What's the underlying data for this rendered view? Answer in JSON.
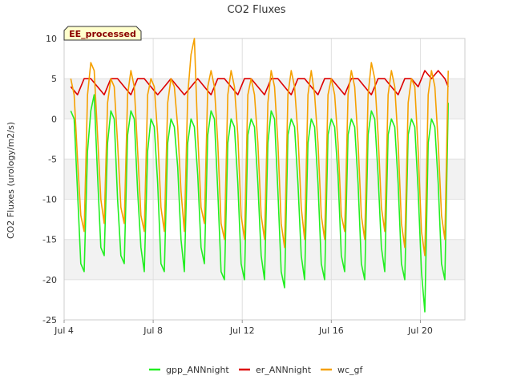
{
  "chart_data": {
    "type": "line",
    "title": "CO2 Fluxes",
    "ylabel": "CO2 Fluxes (urology/m2/s)",
    "xlabel": "",
    "badge": "EE_processed",
    "xlim": [
      4.0,
      22.0
    ],
    "ylim": [
      -25,
      10
    ],
    "yticks": [
      10,
      5,
      0,
      -5,
      -10,
      -15,
      -20,
      -25
    ],
    "xticks": [
      {
        "value": 4,
        "label": "Jul 4"
      },
      {
        "value": 8,
        "label": "Jul 8"
      },
      {
        "value": 12,
        "label": "Jul 12"
      },
      {
        "value": 16,
        "label": "Jul 16"
      },
      {
        "value": 20,
        "label": "Jul 20"
      }
    ],
    "grid": true,
    "legend_position": "bottom-center",
    "colors": {
      "gpp_ANNnight": "#22ee22",
      "er_ANNnight": "#dd0000",
      "wc_gf": "#f5a000",
      "band": "#f2f2f2",
      "badge_bg": "#ffffcc",
      "badge_text": "#8b0000"
    },
    "series": [
      {
        "name": "gpp_ANNnight",
        "x": [
          4.3,
          4.45,
          4.6,
          4.75,
          4.9,
          5.05,
          5.2,
          5.35,
          5.5,
          5.65,
          5.8,
          5.95,
          6.1,
          6.25,
          6.4,
          6.55,
          6.7,
          6.85,
          7.0,
          7.15,
          7.3,
          7.45,
          7.6,
          7.75,
          7.9,
          8.05,
          8.2,
          8.35,
          8.5,
          8.65,
          8.8,
          8.95,
          9.1,
          9.25,
          9.4,
          9.55,
          9.7,
          9.85,
          10.0,
          10.15,
          10.3,
          10.45,
          10.6,
          10.75,
          10.9,
          11.05,
          11.2,
          11.35,
          11.5,
          11.65,
          11.8,
          11.95,
          12.1,
          12.25,
          12.4,
          12.55,
          12.7,
          12.85,
          13.0,
          13.15,
          13.3,
          13.45,
          13.6,
          13.75,
          13.9,
          14.05,
          14.2,
          14.35,
          14.5,
          14.65,
          14.8,
          14.95,
          15.1,
          15.25,
          15.4,
          15.55,
          15.7,
          15.85,
          16.0,
          16.15,
          16.3,
          16.45,
          16.6,
          16.75,
          16.9,
          17.05,
          17.2,
          17.35,
          17.5,
          17.65,
          17.8,
          17.95,
          18.1,
          18.25,
          18.4,
          18.55,
          18.7,
          18.85,
          19.0,
          19.15,
          19.3,
          19.45,
          19.6,
          19.75,
          19.9,
          20.05,
          20.2,
          20.35,
          20.5,
          20.65,
          20.8,
          20.95,
          21.1,
          21.25
        ],
        "values": [
          1,
          0,
          -9,
          -18,
          -19,
          -4,
          1,
          3,
          -7,
          -16,
          -17,
          -3,
          1,
          0,
          -10,
          -17,
          -18,
          -2,
          1,
          0,
          -9,
          -16,
          -19,
          -4,
          0,
          -1,
          -8,
          -18,
          -19,
          -3,
          0,
          -1,
          -6,
          -15,
          -19,
          -3,
          0,
          -1,
          -7,
          -16,
          -18,
          -2,
          1,
          0,
          -9,
          -19,
          -20,
          -3,
          0,
          -1,
          -8,
          -18,
          -20,
          -2,
          0,
          -1,
          -8,
          -17,
          -20,
          -3,
          1,
          0,
          -9,
          -19,
          -21,
          -2,
          0,
          -1,
          -8,
          -17,
          -20,
          -3,
          0,
          -1,
          -8,
          -18,
          -20,
          -2,
          0,
          -1,
          -7,
          -17,
          -19,
          -2,
          0,
          -1,
          -8,
          -18,
          -20,
          -2,
          1,
          0,
          -7,
          -16,
          -19,
          -2,
          0,
          -1,
          -8,
          -18,
          -20,
          -2,
          0,
          -1,
          -9,
          -19,
          -24,
          -3,
          0,
          -1,
          -8,
          -18,
          -20,
          2
        ]
      },
      {
        "name": "er_ANNnight",
        "x": [
          4.3,
          4.6,
          4.9,
          5.2,
          5.5,
          5.8,
          6.1,
          6.4,
          6.7,
          7.0,
          7.3,
          7.6,
          7.9,
          8.2,
          8.5,
          8.8,
          9.1,
          9.4,
          9.7,
          10.0,
          10.3,
          10.6,
          10.9,
          11.2,
          11.5,
          11.8,
          12.1,
          12.4,
          12.7,
          13.0,
          13.3,
          13.6,
          13.9,
          14.2,
          14.5,
          14.8,
          15.1,
          15.4,
          15.7,
          16.0,
          16.3,
          16.6,
          16.9,
          17.2,
          17.5,
          17.8,
          18.1,
          18.4,
          18.7,
          19.0,
          19.3,
          19.6,
          19.9,
          20.2,
          20.5,
          20.8,
          21.1,
          21.25
        ],
        "values": [
          4,
          3,
          5,
          5,
          4,
          3,
          5,
          5,
          4,
          3,
          5,
          5,
          4,
          3,
          4,
          5,
          4,
          3,
          4,
          5,
          4,
          3,
          5,
          5,
          4,
          3,
          5,
          5,
          4,
          3,
          5,
          5,
          4,
          3,
          5,
          5,
          4,
          3,
          5,
          5,
          4,
          3,
          5,
          5,
          4,
          3,
          5,
          5,
          4,
          3,
          5,
          5,
          4,
          6,
          5,
          6,
          5,
          4
        ]
      },
      {
        "name": "wc_gf",
        "x": [
          4.3,
          4.45,
          4.6,
          4.75,
          4.9,
          5.05,
          5.2,
          5.35,
          5.5,
          5.65,
          5.8,
          5.95,
          6.1,
          6.25,
          6.4,
          6.55,
          6.7,
          6.85,
          7.0,
          7.15,
          7.3,
          7.45,
          7.6,
          7.75,
          7.9,
          8.05,
          8.2,
          8.35,
          8.5,
          8.65,
          8.8,
          8.95,
          9.1,
          9.25,
          9.4,
          9.55,
          9.7,
          9.85,
          10.0,
          10.15,
          10.3,
          10.45,
          10.6,
          10.75,
          10.9,
          11.05,
          11.2,
          11.35,
          11.5,
          11.65,
          11.8,
          11.95,
          12.1,
          12.25,
          12.4,
          12.55,
          12.7,
          12.85,
          13.0,
          13.15,
          13.3,
          13.45,
          13.6,
          13.75,
          13.9,
          14.05,
          14.2,
          14.35,
          14.5,
          14.65,
          14.8,
          14.95,
          15.1,
          15.25,
          15.4,
          15.55,
          15.7,
          15.85,
          16.0,
          16.15,
          16.3,
          16.45,
          16.6,
          16.75,
          16.9,
          17.05,
          17.2,
          17.35,
          17.5,
          17.65,
          17.8,
          17.95,
          18.1,
          18.25,
          18.4,
          18.55,
          18.7,
          18.85,
          19.0,
          19.15,
          19.3,
          19.45,
          19.6,
          19.75,
          19.9,
          20.05,
          20.2,
          20.35,
          20.5,
          20.65,
          20.8,
          20.95,
          21.1,
          21.25
        ],
        "values": [
          5,
          3,
          -5,
          -12,
          -14,
          3,
          7,
          6,
          -2,
          -10,
          -13,
          2,
          5,
          4,
          -3,
          -11,
          -13,
          3,
          6,
          4,
          -4,
          -12,
          -14,
          3,
          5,
          4,
          -2,
          -11,
          -14,
          2,
          5,
          4,
          -1,
          -9,
          -14,
          3,
          8,
          10,
          -2,
          -11,
          -13,
          4,
          6,
          4,
          -3,
          -13,
          -15,
          3,
          6,
          4,
          -2,
          -12,
          -15,
          3,
          5,
          3,
          -3,
          -12,
          -15,
          2,
          6,
          4,
          -3,
          -13,
          -16,
          3,
          6,
          4,
          -2,
          -11,
          -15,
          3,
          6,
          3,
          -3,
          -12,
          -15,
          3,
          5,
          3,
          -3,
          -12,
          -14,
          3,
          6,
          4,
          -3,
          -12,
          -15,
          3,
          7,
          5,
          -2,
          -11,
          -14,
          3,
          6,
          4,
          -3,
          -13,
          -16,
          2,
          5,
          4,
          -4,
          -14,
          -17,
          3,
          6,
          4,
          -3,
          -12,
          -15,
          6
        ]
      }
    ]
  }
}
